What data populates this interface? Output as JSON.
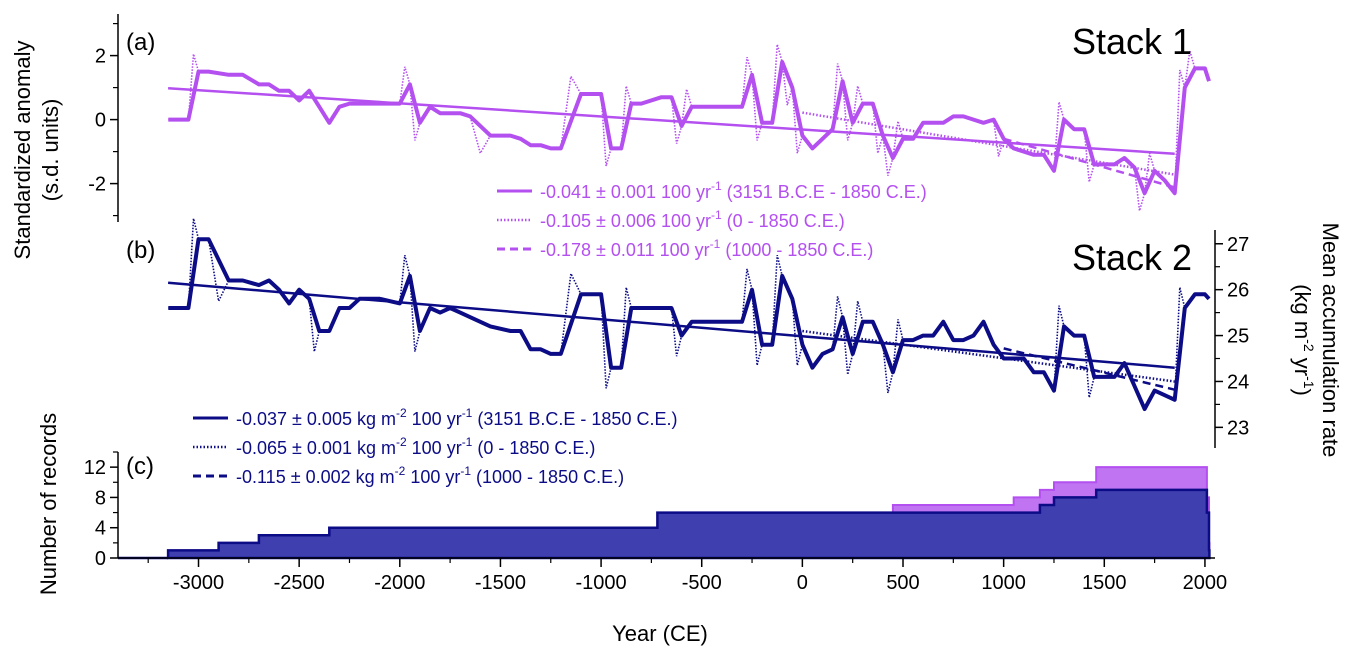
{
  "colors": {
    "stack1": "#b44ff0",
    "stack2": "#0c0c86",
    "stack2_fill": "#3f3fb0",
    "axis": "#000000"
  },
  "chart_data": [
    {
      "id": "a",
      "type": "line",
      "panel_label": "(a)",
      "title": "Stack 1",
      "ylabel": [
        "Standardized anomaly",
        "(s.d. units)"
      ],
      "ylim": [
        -3.2,
        3.3
      ],
      "xlim": [
        -3400,
        2050
      ],
      "yticks": [
        -2,
        0,
        2
      ],
      "ytick_labels": [
        "-2",
        "0",
        "2"
      ],
      "series": [
        {
          "key": "anom",
          "x": [
            -3150,
            -3050,
            -3000,
            -2950,
            -2850,
            -2780,
            -2700,
            -2650,
            -2600,
            -2550,
            -2500,
            -2450,
            -2400,
            -2350,
            -2300,
            -2250,
            -2200,
            -2150,
            -2100,
            -2000,
            -1950,
            -1900,
            -1850,
            -1800,
            -1750,
            -1700,
            -1650,
            -1550,
            -1450,
            -1400,
            -1350,
            -1300,
            -1250,
            -1200,
            -1100,
            -1050,
            -1000,
            -950,
            -900,
            -850,
            -800,
            -700,
            -650,
            -600,
            -550,
            -500,
            -450,
            -400,
            -300,
            -250,
            -200,
            -150,
            -100,
            -50,
            0,
            50,
            100,
            150,
            200,
            250,
            300,
            350,
            400,
            450,
            500,
            550,
            600,
            650,
            700,
            750,
            800,
            850,
            900,
            950,
            1000,
            1050,
            1100,
            1150,
            1200,
            1250,
            1300,
            1350,
            1400,
            1450,
            1500,
            1550,
            1600,
            1650,
            1700,
            1750,
            1800,
            1850,
            1900,
            1950,
            2000,
            2020
          ],
          "y": [
            0,
            0,
            1.5,
            1.5,
            1.4,
            1.4,
            1.1,
            1.1,
            0.9,
            0.9,
            0.6,
            0.9,
            0.4,
            -0.1,
            0.4,
            0.5,
            0.5,
            0.5,
            0.5,
            0.5,
            1.1,
            -0.1,
            0.4,
            0.2,
            0.2,
            0.2,
            0.1,
            -0.5,
            -0.5,
            -0.6,
            -0.8,
            -0.8,
            -0.9,
            -0.9,
            0.8,
            0.8,
            0.8,
            -0.9,
            -0.9,
            0.5,
            0.5,
            0.7,
            0.7,
            -0.2,
            0.4,
            0.4,
            0.4,
            0.4,
            0.4,
            1.4,
            -0.1,
            -0.1,
            1.8,
            1.0,
            -0.5,
            -0.9,
            -0.6,
            -0.3,
            1.2,
            -0.1,
            0.5,
            0.5,
            -0.5,
            -1.2,
            -0.6,
            -0.6,
            -0.1,
            -0.1,
            -0.1,
            0.1,
            0.1,
            0.0,
            -0.1,
            0,
            -0.6,
            -0.9,
            -1.0,
            -1.1,
            -1.1,
            -1.6,
            0,
            -0.3,
            -0.3,
            -1.4,
            -1.4,
            -1.4,
            -1.2,
            -1.5,
            -2.3,
            -1.6,
            -1.9,
            -2.3,
            1.0,
            1.6,
            1.6,
            1.2
          ]
        },
        {
          "key": "trend_all",
          "x": [
            -3151,
            1850
          ],
          "y": [
            0.98,
            -1.07
          ]
        },
        {
          "key": "trend_0",
          "x": [
            0,
            1850
          ],
          "y": [
            0.22,
            -1.72
          ]
        },
        {
          "key": "trend_1000",
          "x": [
            1000,
            1850
          ],
          "y": [
            -0.6,
            -2.12
          ]
        }
      ],
      "legend": [
        {
          "style": "solid",
          "text": "-0.041 ± 0.001 100 yr",
          "sup": "-1",
          "rest": " (3151 B.C.E - 1850 C.E.)"
        },
        {
          "style": "dotted",
          "text": "-0.105 ± 0.006 100 yr",
          "sup": "-1",
          "rest": " (0 - 1850 C.E.)"
        },
        {
          "style": "dashed",
          "text": "-0.178 ± 0.011 100 yr",
          "sup": "-1",
          "rest": " (1000 - 1850 C.E.)"
        }
      ]
    },
    {
      "id": "b",
      "type": "line",
      "panel_label": "(b)",
      "title": "Stack 2",
      "ylabel_right": [
        "Mean accumulation rate",
        "(kg m",
        "-2",
        " yr",
        "-1",
        ")"
      ],
      "ylim": [
        22.55,
        27.3
      ],
      "xlim": [
        -3400,
        2050
      ],
      "yticks": [
        23,
        24,
        25,
        26,
        27
      ],
      "ytick_labels": [
        "23",
        "24",
        "25",
        "26",
        "27"
      ],
      "series": [
        {
          "key": "acc",
          "x": [
            -3150,
            -3050,
            -3000,
            -2950,
            -2850,
            -2780,
            -2700,
            -2650,
            -2600,
            -2550,
            -2500,
            -2450,
            -2400,
            -2350,
            -2300,
            -2250,
            -2200,
            -2150,
            -2100,
            -2000,
            -1950,
            -1900,
            -1850,
            -1800,
            -1750,
            -1700,
            -1650,
            -1550,
            -1450,
            -1400,
            -1350,
            -1300,
            -1250,
            -1200,
            -1100,
            -1050,
            -1000,
            -950,
            -900,
            -850,
            -800,
            -700,
            -650,
            -600,
            -550,
            -500,
            -450,
            -400,
            -300,
            -250,
            -200,
            -150,
            -100,
            -50,
            0,
            50,
            100,
            150,
            200,
            250,
            300,
            350,
            400,
            450,
            500,
            550,
            600,
            650,
            700,
            750,
            800,
            850,
            900,
            950,
            1000,
            1050,
            1100,
            1150,
            1200,
            1250,
            1300,
            1350,
            1400,
            1450,
            1500,
            1550,
            1600,
            1650,
            1700,
            1750,
            1800,
            1850,
            1900,
            1950,
            2000,
            2020
          ],
          "y": [
            25.6,
            25.6,
            27.1,
            27.1,
            26.2,
            26.2,
            26.1,
            26.2,
            26.0,
            25.7,
            26.0,
            25.8,
            25.1,
            25.1,
            25.6,
            25.6,
            25.8,
            25.8,
            25.8,
            25.7,
            26.3,
            25.1,
            25.6,
            25.5,
            25.6,
            25.5,
            25.4,
            25.2,
            25.1,
            25.1,
            24.7,
            24.7,
            24.6,
            24.6,
            25.9,
            25.9,
            25.9,
            24.3,
            24.3,
            25.6,
            25.6,
            25.6,
            25.6,
            25.0,
            25.3,
            25.3,
            25.3,
            25.3,
            25.3,
            26.0,
            24.8,
            24.8,
            26.3,
            25.8,
            24.8,
            24.3,
            24.6,
            24.7,
            25.4,
            24.6,
            25.3,
            25.3,
            24.8,
            24.2,
            24.9,
            24.9,
            25.0,
            25.0,
            25.3,
            24.9,
            24.9,
            25.0,
            25.3,
            24.8,
            24.5,
            24.5,
            24.5,
            24.2,
            24.2,
            23.8,
            25.2,
            25.0,
            25.0,
            24.1,
            24.1,
            24.1,
            24.4,
            23.9,
            23.4,
            23.8,
            23.7,
            23.6,
            25.6,
            25.9,
            25.9,
            25.8
          ]
        },
        {
          "key": "trend_all",
          "x": [
            -3151,
            1850
          ],
          "y": [
            26.15,
            24.3
          ]
        },
        {
          "key": "trend_0",
          "x": [
            0,
            1850
          ],
          "y": [
            25.1,
            24.0
          ]
        },
        {
          "key": "trend_1000",
          "x": [
            1000,
            1850
          ],
          "y": [
            24.72,
            23.82
          ]
        }
      ],
      "legend": [
        {
          "style": "solid",
          "a": "-0.037 ± 0.005 kg m",
          "s1": "-2",
          "b": " 100 yr",
          "s2": "-1",
          "c": " (3151 B.C.E - 1850 C.E.)"
        },
        {
          "style": "dotted",
          "a": "-0.065 ± 0.001 kg m",
          "s1": "-2",
          "b": " 100 yr",
          "s2": "-1",
          "c": " (0 - 1850 C.E.)"
        },
        {
          "style": "dashed",
          "a": "-0.115 ± 0.002 kg m",
          "s1": "-2",
          "b": " 100 yr",
          "s2": "-1",
          "c": " (1000 - 1850 C.E.)"
        }
      ]
    },
    {
      "id": "c",
      "type": "area",
      "panel_label": "(c)",
      "ylabel": "Number of records",
      "xlabel": "Year (CE)",
      "ylim": [
        0,
        14
      ],
      "xlim": [
        -3400,
        2050
      ],
      "yticks": [
        0,
        4,
        8,
        12
      ],
      "ytick_labels": [
        "0",
        "4",
        "8",
        "12"
      ],
      "xticks": [
        -3000,
        -2500,
        -2000,
        -1500,
        -1000,
        -500,
        0,
        500,
        1000,
        1500,
        2000
      ],
      "xtick_labels": [
        "-3000",
        "-2500",
        "-2000",
        "-1500",
        "-1000",
        "-500",
        "0",
        "500",
        "1000",
        "1500",
        "2000"
      ],
      "series": [
        {
          "key": "stack1",
          "x": [
            -3151,
            -2900,
            -2700,
            -2350,
            -720,
            450,
            1050,
            1180,
            1250,
            1460,
            2000,
            2010,
            2020
          ],
          "y": [
            1,
            2,
            3,
            4,
            6,
            7,
            8,
            9,
            10,
            12,
            12,
            8,
            2
          ]
        },
        {
          "key": "stack2",
          "x": [
            -3151,
            -2900,
            -2700,
            -2350,
            -720,
            1180,
            1250,
            1460,
            2000,
            2010,
            2020
          ],
          "y": [
            1,
            2,
            3,
            4,
            6,
            7,
            8,
            9,
            9,
            6,
            1
          ]
        }
      ]
    }
  ]
}
